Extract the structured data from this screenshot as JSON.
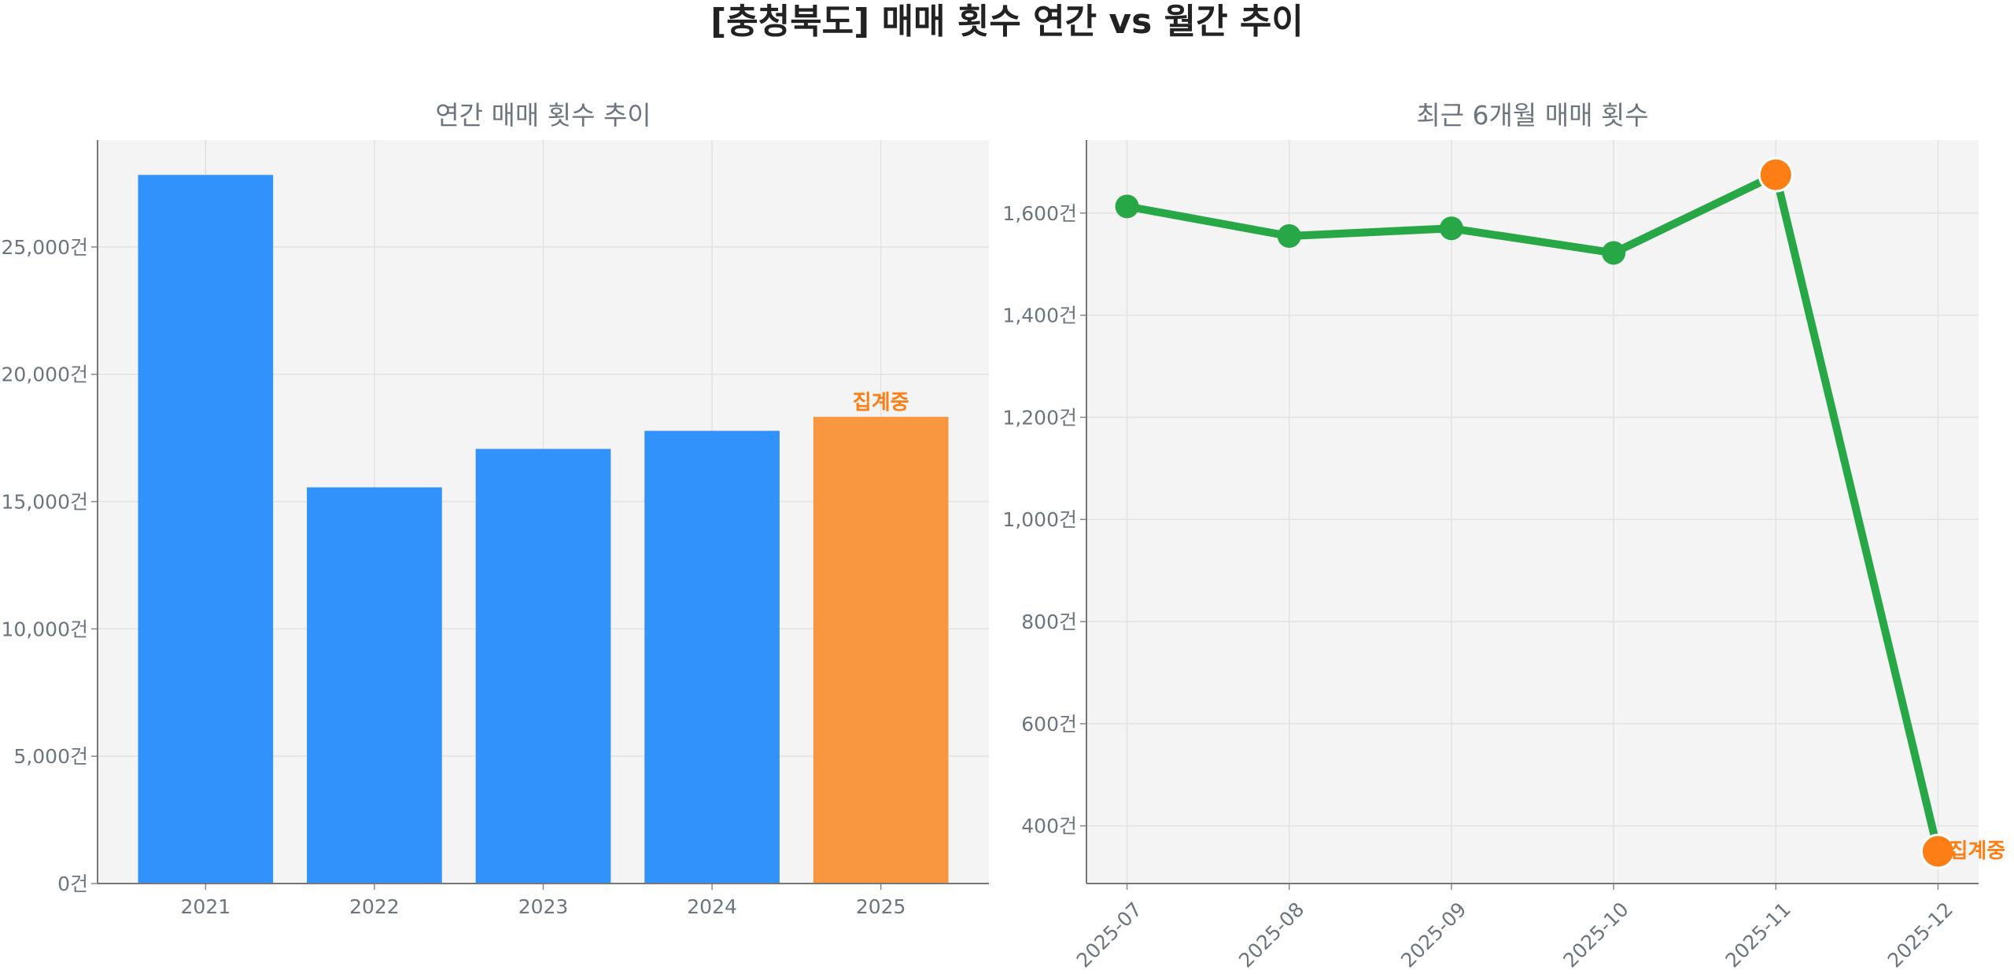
{
  "title": "[충청북도] 매매 횟수 연간 vs 월간 추이",
  "colors": {
    "bar": "#3192fb",
    "bar_highlight": "#f99740",
    "line": "#27a745",
    "marker_highlight": "#fd7e14",
    "annotation": "#fd7e14",
    "axis_text": "#6c757d",
    "plot_bg": "#f4f4f4"
  },
  "chart_data": [
    {
      "type": "bar",
      "title": "연간 매매 횟수 추이",
      "categories": [
        "2021",
        "2022",
        "2023",
        "2024",
        "2025"
      ],
      "values": [
        27830,
        15560,
        17070,
        17780,
        18330
      ],
      "highlight_index": 4,
      "annotation": {
        "category": "2025",
        "text": "집계중"
      },
      "yticks": [
        0,
        5000,
        10000,
        15000,
        20000,
        25000
      ],
      "ytick_labels": [
        "0건",
        "5,000건",
        "10,000건",
        "15,000건",
        "20,000건",
        "25,000건"
      ],
      "ylim": [
        0,
        29200
      ],
      "grid": true
    },
    {
      "type": "line",
      "title": "최근 6개월 매매 횟수",
      "categories": [
        "2025-07",
        "2025-08",
        "2025-09",
        "2025-10",
        "2025-11",
        "2025-12"
      ],
      "values": [
        1613,
        1555,
        1570,
        1522,
        1675,
        350
      ],
      "highlight_indices": [
        4,
        5
      ],
      "annotation": {
        "category": "2025-12",
        "text": "집계중"
      },
      "yticks": [
        400,
        600,
        800,
        1000,
        1200,
        1400,
        1600
      ],
      "ytick_labels": [
        "400건",
        "600건",
        "800건",
        "1,000건",
        "1,200건",
        "1,400건",
        "1,600건"
      ],
      "ylim": [
        287,
        1743
      ],
      "grid": true
    }
  ]
}
